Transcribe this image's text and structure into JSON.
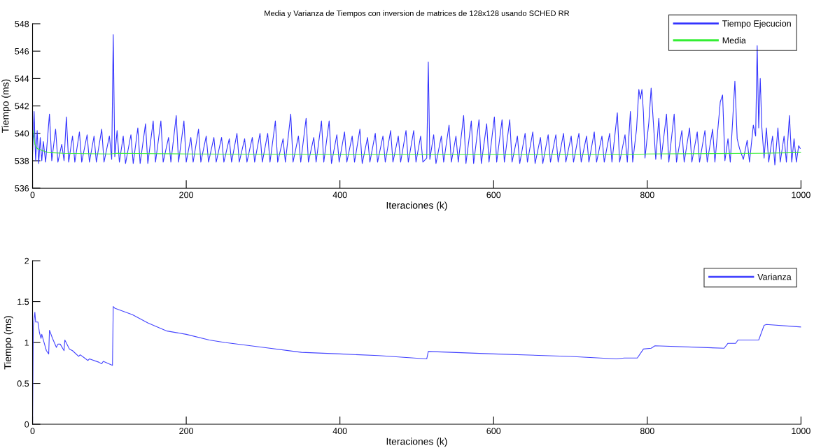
{
  "chart_data": [
    {
      "type": "line",
      "title": "Media y Varianza de Tiempos con inversion de matrices de 128x128 usando SCHED RR",
      "xlabel": "Iteraciones (k)",
      "ylabel": "Tiempo (ms)",
      "xlim": [
        0,
        1000
      ],
      "xticks": [
        0,
        200,
        400,
        600,
        800,
        1000
      ],
      "ylim": [
        536,
        548
      ],
      "yticks": [
        536,
        538,
        540,
        542,
        544,
        546,
        548
      ],
      "grid": false,
      "legend": "top right",
      "marker": "none",
      "line_style": "solid",
      "series": [
        {
          "name": "Tiempo Ejecucion",
          "color": "#3333ff",
          "x": [
            0,
            2,
            4,
            6,
            8,
            10,
            12,
            14,
            17,
            22,
            25,
            30,
            33,
            38,
            41,
            44,
            47,
            52,
            55,
            61,
            64,
            71,
            74,
            80,
            83,
            90,
            93,
            100,
            103,
            105,
            107,
            110,
            113,
            118,
            121,
            128,
            131,
            137,
            140,
            147,
            150,
            157,
            160,
            167,
            170,
            177,
            180,
            187,
            190,
            197,
            200,
            206,
            209,
            216,
            219,
            226,
            229,
            236,
            239,
            246,
            249,
            256,
            259,
            266,
            269,
            276,
            279,
            286,
            289,
            296,
            299,
            306,
            309,
            316,
            319,
            326,
            329,
            336,
            339,
            346,
            349,
            356,
            359,
            366,
            369,
            376,
            379,
            386,
            389,
            396,
            399,
            406,
            409,
            416,
            419,
            426,
            429,
            436,
            439,
            446,
            449,
            456,
            459,
            466,
            469,
            476,
            479,
            486,
            489,
            496,
            499,
            505,
            508,
            513,
            515,
            517,
            522,
            525,
            532,
            535,
            542,
            545,
            551,
            554,
            561,
            564,
            571,
            574,
            581,
            584,
            591,
            594,
            601,
            604,
            611,
            614,
            621,
            624,
            631,
            634,
            641,
            644,
            651,
            654,
            661,
            664,
            671,
            674,
            681,
            684,
            691,
            694,
            701,
            704,
            711,
            714,
            721,
            724,
            731,
            734,
            741,
            744,
            751,
            754,
            761,
            764,
            771,
            774,
            778,
            781,
            786,
            789,
            791,
            793,
            795,
            797,
            802,
            805,
            808,
            811,
            815,
            818,
            825,
            828,
            835,
            838,
            845,
            848,
            855,
            858,
            865,
            868,
            875,
            878,
            885,
            888,
            895,
            898,
            901,
            905,
            908,
            914,
            917,
            920,
            925,
            930,
            933,
            938,
            941,
            943,
            945,
            947,
            949,
            952,
            955,
            958,
            963,
            966,
            970,
            973,
            978,
            981,
            985,
            988,
            991,
            994,
            997,
            999
          ],
          "values": [
            538.5,
            541.6,
            538,
            540.2,
            537.8,
            539.7,
            538,
            539.4,
            537.9,
            541.4,
            538,
            540.3,
            537.9,
            539.2,
            538,
            541.2,
            537.9,
            539.8,
            537.9,
            540.1,
            537.9,
            539.9,
            537.9,
            539.8,
            537.9,
            540.3,
            537.9,
            539.8,
            538.1,
            547.2,
            538.3,
            540.2,
            537.9,
            539.8,
            537.8,
            539.9,
            537.8,
            540.4,
            537.8,
            540.7,
            537.8,
            540.9,
            537.9,
            540.9,
            537.9,
            539.7,
            537.9,
            541.3,
            537.9,
            540.9,
            537.9,
            539.7,
            537.9,
            540.3,
            537.9,
            539.8,
            537.9,
            539.7,
            537.9,
            539.7,
            537.9,
            539.6,
            537.9,
            540,
            537.9,
            539.6,
            537.9,
            539.7,
            537.9,
            540,
            537.9,
            540,
            537.9,
            540.9,
            537.9,
            539.6,
            537.9,
            541.4,
            537.9,
            539.8,
            537.9,
            541.1,
            537.9,
            539.7,
            537.9,
            540.9,
            537.9,
            540.9,
            537.8,
            539.9,
            537.9,
            540.1,
            537.9,
            539.8,
            537.9,
            540.3,
            537.8,
            539.7,
            537.9,
            540,
            537.9,
            539.8,
            537.9,
            540.2,
            537.9,
            539.8,
            537.9,
            540.2,
            537.9,
            540.2,
            537.9,
            539.8,
            537.9,
            538.2,
            545.2,
            538.1,
            539.9,
            537.8,
            539.8,
            537.9,
            540.6,
            537.9,
            539.8,
            537.9,
            541.3,
            537.8,
            540.9,
            537.8,
            541,
            537.8,
            540.7,
            537.9,
            541.2,
            537.9,
            541,
            537.9,
            541,
            537.9,
            539.8,
            537.8,
            540,
            537.9,
            540.1,
            537.8,
            539.7,
            537.8,
            539.9,
            537.9,
            539.9,
            537.9,
            540,
            537.9,
            539.8,
            537.9,
            540,
            537.9,
            539.8,
            537.9,
            540.1,
            537.9,
            539.8,
            537.9,
            540,
            537.9,
            541.5,
            537.9,
            539.9,
            537.9,
            541.6,
            537.9,
            540.3,
            543.2,
            542.5,
            543.2,
            541.5,
            538.2,
            540.8,
            543.3,
            540.7,
            538.1,
            541.1,
            538.1,
            541.4,
            537.9,
            541.4,
            537.9,
            540.2,
            537.9,
            540.4,
            537.9,
            540.1,
            537.9,
            540.2,
            537.9,
            540.3,
            537.9,
            542.3,
            542.8,
            538,
            539.6,
            537.9,
            543.8,
            539.6,
            538.9,
            538.1,
            539.5,
            537.9,
            540.6,
            539.8,
            546.4,
            540.4,
            544,
            540.5,
            538.2,
            540.4,
            537.9,
            539.8,
            537.7,
            540.4,
            537.9,
            539.8,
            537.9,
            541.3,
            537.9,
            539.6,
            537.9,
            539.1,
            538.9
          ]
        },
        {
          "name": "Media",
          "color": "#33ee33",
          "x": [
            1,
            3,
            6,
            10,
            20,
            40,
            100,
            110,
            200,
            400,
            600,
            790,
            800,
            950,
            1000
          ],
          "values": [
            540.2,
            539.2,
            538.9,
            538.8,
            538.6,
            538.55,
            538.5,
            538.55,
            538.5,
            538.45,
            538.45,
            538.45,
            538.5,
            538.55,
            538.6
          ]
        }
      ]
    },
    {
      "type": "line",
      "xlabel": "Iteraciones (k)",
      "ylabel": "Tiempo (ms)",
      "xlim": [
        0,
        1000
      ],
      "xticks": [
        0,
        200,
        400,
        600,
        800,
        1000
      ],
      "ylim": [
        0,
        2
      ],
      "yticks": [
        0,
        0.5,
        1,
        1.5,
        2
      ],
      "grid": false,
      "legend": "top right",
      "marker": "none",
      "line_style": "solid",
      "series": [
        {
          "name": "Varianza",
          "color": "#4444ff",
          "x": [
            0,
            1,
            3,
            4,
            7,
            9,
            11,
            12,
            15,
            18,
            21,
            22,
            26,
            31,
            33,
            36,
            41,
            42,
            48,
            52,
            60,
            62,
            72,
            74,
            86,
            90,
            92,
            104,
            105,
            107,
            130,
            150,
            160,
            175,
            200,
            230,
            250,
            300,
            350,
            400,
            450,
            513,
            515,
            600,
            700,
            760,
            770,
            787,
            795,
            805,
            810,
            900,
            905,
            915,
            918,
            945,
            952,
            955,
            1000
          ],
          "values": [
            0,
            1.2,
            1.37,
            1.25,
            1.25,
            1.12,
            1.05,
            1.1,
            1.0,
            0.9,
            0.86,
            1.15,
            1.05,
            0.94,
            0.98,
            0.98,
            0.9,
            1.03,
            0.92,
            0.9,
            0.83,
            0.85,
            0.78,
            0.8,
            0.76,
            0.74,
            0.77,
            0.72,
            1.44,
            1.42,
            1.34,
            1.24,
            1.2,
            1.14,
            1.1,
            1.03,
            1.0,
            0.94,
            0.88,
            0.86,
            0.84,
            0.8,
            0.89,
            0.86,
            0.83,
            0.8,
            0.81,
            0.81,
            0.92,
            0.93,
            0.96,
            0.93,
            0.99,
            0.99,
            1.03,
            1.03,
            1.21,
            1.22,
            1.19
          ]
        }
      ]
    }
  ]
}
